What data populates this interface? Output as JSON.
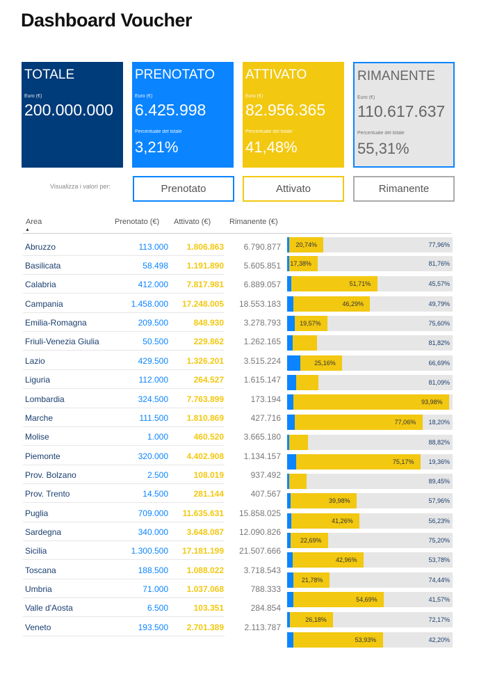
{
  "page": {
    "title": "Dashboard Voucher"
  },
  "cards": {
    "totale": {
      "title": "TOTALE",
      "unit": "Euro (€)",
      "value": "200.000.000"
    },
    "prenotato": {
      "title": "PRENOTATO",
      "unit": "Euro (€)",
      "value": "6.425.998",
      "pct_label": "Percentuale del totale",
      "pct": "3,21%"
    },
    "attivato": {
      "title": "ATTIVATO",
      "unit": "Euro (€)",
      "value": "82.956.365",
      "pct_label": "Percentuale del totale",
      "pct": "41,48%"
    },
    "rimanente": {
      "title": "RIMANENTE",
      "unit": "Euro (€)",
      "value": "110.617.637",
      "pct_label": "Percentuale del totale",
      "pct": "55,31%"
    }
  },
  "filters": {
    "label": "Visualizza i valori per:",
    "options": [
      "Prenotato",
      "Attivato",
      "Rimanente"
    ]
  },
  "table": {
    "headers": {
      "area": "Area",
      "prenotato": "Prenotato (€)",
      "attivato": "Attivato (€)",
      "rimanente": "Rimanente (€)"
    },
    "rows": [
      {
        "area": "Abruzzo",
        "prenotato": "113.000",
        "attivato": "1.806.863",
        "rimanente": "6.790.877"
      },
      {
        "area": "Basilicata",
        "prenotato": "58.498",
        "attivato": "1.191.890",
        "rimanente": "5.605.851"
      },
      {
        "area": "Calabria",
        "prenotato": "412.000",
        "attivato": "7.817.981",
        "rimanente": "6.889.057"
      },
      {
        "area": "Campania",
        "prenotato": "1.458.000",
        "attivato": "17.248.005",
        "rimanente": "18.553.183"
      },
      {
        "area": "Emilia-Romagna",
        "prenotato": "209.500",
        "attivato": "848.930",
        "rimanente": "3.278.793"
      },
      {
        "area": "Friuli-Venezia Giulia",
        "prenotato": "50.500",
        "attivato": "229.862",
        "rimanente": "1.262.165"
      },
      {
        "area": "Lazio",
        "prenotato": "429.500",
        "attivato": "1.326.201",
        "rimanente": "3.515.224"
      },
      {
        "area": "Liguria",
        "prenotato": "112.000",
        "attivato": "264.527",
        "rimanente": "1.615.147"
      },
      {
        "area": "Lombardia",
        "prenotato": "324.500",
        "attivato": "7.763.899",
        "rimanente": "173.194"
      },
      {
        "area": "Marche",
        "prenotato": "111.500",
        "attivato": "1.810.869",
        "rimanente": "427.716"
      },
      {
        "area": "Molise",
        "prenotato": "1.000",
        "attivato": "460.520",
        "rimanente": "3.665.180"
      },
      {
        "area": "Piemonte",
        "prenotato": "320.000",
        "attivato": "4.402.908",
        "rimanente": "1.134.157"
      },
      {
        "area": "Prov. Bolzano",
        "prenotato": "2.500",
        "attivato": "108.019",
        "rimanente": "937.492"
      },
      {
        "area": "Prov. Trento",
        "prenotato": "14.500",
        "attivato": "281.144",
        "rimanente": "407.567"
      },
      {
        "area": "Puglia",
        "prenotato": "709.000",
        "attivato": "11.635.631",
        "rimanente": "15.858.025"
      },
      {
        "area": "Sardegna",
        "prenotato": "340.000",
        "attivato": "3.648.087",
        "rimanente": "12.090.826"
      },
      {
        "area": "Sicilia",
        "prenotato": "1.300.500",
        "attivato": "17.181.199",
        "rimanente": "21.507.666"
      },
      {
        "area": "Toscana",
        "prenotato": "188.500",
        "attivato": "1.088.022",
        "rimanente": "3.718.543"
      },
      {
        "area": "Umbria",
        "prenotato": "71.000",
        "attivato": "1.037.068",
        "rimanente": "788.333"
      },
      {
        "area": "Valle d'Aosta",
        "prenotato": "6.500",
        "attivato": "103.351",
        "rimanente": "284.854"
      },
      {
        "area": "Veneto",
        "prenotato": "193.500",
        "attivato": "2.701.389",
        "rimanente": "2.113.787"
      }
    ]
  },
  "chart_data": {
    "type": "bar",
    "stacked": true,
    "orientation": "horizontal",
    "unit": "percent",
    "colors": {
      "prenotato": "#0a84ff",
      "attivato": "#f2c811",
      "rimanente": "#e6e6e6"
    },
    "bars": [
      {
        "prenotato": 1.3,
        "attivato": 20.74,
        "rimanente": 77.96,
        "label_attivato": "20,74%",
        "label_rimanente": "77,96%"
      },
      {
        "prenotato": 0.85,
        "attivato": 17.38,
        "rimanente": 81.76,
        "label_attivato": "17,38%",
        "label_rimanente": "81,76%"
      },
      {
        "prenotato": 2.73,
        "attivato": 51.71,
        "rimanente": 45.57,
        "label_attivato": "51,71%",
        "label_rimanente": "45,57%"
      },
      {
        "prenotato": 3.92,
        "attivato": 46.29,
        "rimanente": 49.79,
        "label_attivato": "46,29%",
        "label_rimanente": "49,79%"
      },
      {
        "prenotato": 4.83,
        "attivato": 19.57,
        "rimanente": 75.6,
        "label_attivato": "19,57%",
        "label_rimanente": "75,60%"
      },
      {
        "prenotato": 3.27,
        "attivato": 14.91,
        "rimanente": 81.82,
        "label_attivato": "",
        "label_rimanente": "81,82%"
      },
      {
        "prenotato": 8.15,
        "attivato": 25.16,
        "rimanente": 66.69,
        "label_attivato": "25,16%",
        "label_rimanente": "66,69%"
      },
      {
        "prenotato": 5.62,
        "attivato": 13.28,
        "rimanente": 81.09,
        "label_attivato": "",
        "label_rimanente": "81,09%"
      },
      {
        "prenotato": 3.93,
        "attivato": 93.98,
        "rimanente": 2.1,
        "label_attivato": "93,98%",
        "label_rimanente": ""
      },
      {
        "prenotato": 4.74,
        "attivato": 77.06,
        "rimanente": 18.2,
        "label_attivato": "77,06%",
        "label_rimanente": "18,20%"
      },
      {
        "prenotato": 0.02,
        "attivato": 11.16,
        "rimanente": 88.82,
        "label_attivato": "",
        "label_rimanente": "88,82%"
      },
      {
        "prenotato": 5.47,
        "attivato": 75.17,
        "rimanente": 19.36,
        "label_attivato": "75,17%",
        "label_rimanente": "19,36%"
      },
      {
        "prenotato": 0.24,
        "attivato": 10.31,
        "rimanente": 89.45,
        "label_attivato": "",
        "label_rimanente": "89,45%"
      },
      {
        "prenotato": 2.06,
        "attivato": 39.98,
        "rimanente": 57.96,
        "label_attivato": "39,98%",
        "label_rimanente": "57,96%"
      },
      {
        "prenotato": 2.51,
        "attivato": 41.26,
        "rimanente": 56.23,
        "label_attivato": "41,26%",
        "label_rimanente": "56,23%"
      },
      {
        "prenotato": 2.11,
        "attivato": 22.69,
        "rimanente": 75.2,
        "label_attivato": "22,69%",
        "label_rimanente": "75,20%"
      },
      {
        "prenotato": 3.26,
        "attivato": 42.96,
        "rimanente": 53.78,
        "label_attivato": "42,96%",
        "label_rimanente": "53,78%"
      },
      {
        "prenotato": 3.78,
        "attivato": 21.78,
        "rimanente": 74.44,
        "label_attivato": "21,78%",
        "label_rimanente": "74,44%"
      },
      {
        "prenotato": 3.74,
        "attivato": 54.69,
        "rimanente": 41.57,
        "label_attivato": "54,69%",
        "label_rimanente": "41,57%"
      },
      {
        "prenotato": 1.65,
        "attivato": 26.18,
        "rimanente": 72.17,
        "label_attivato": "26,18%",
        "label_rimanente": "72,17%"
      },
      {
        "prenotato": 3.87,
        "attivato": 53.93,
        "rimanente": 42.2,
        "label_attivato": "53,93%",
        "label_rimanente": "42,20%"
      }
    ]
  }
}
